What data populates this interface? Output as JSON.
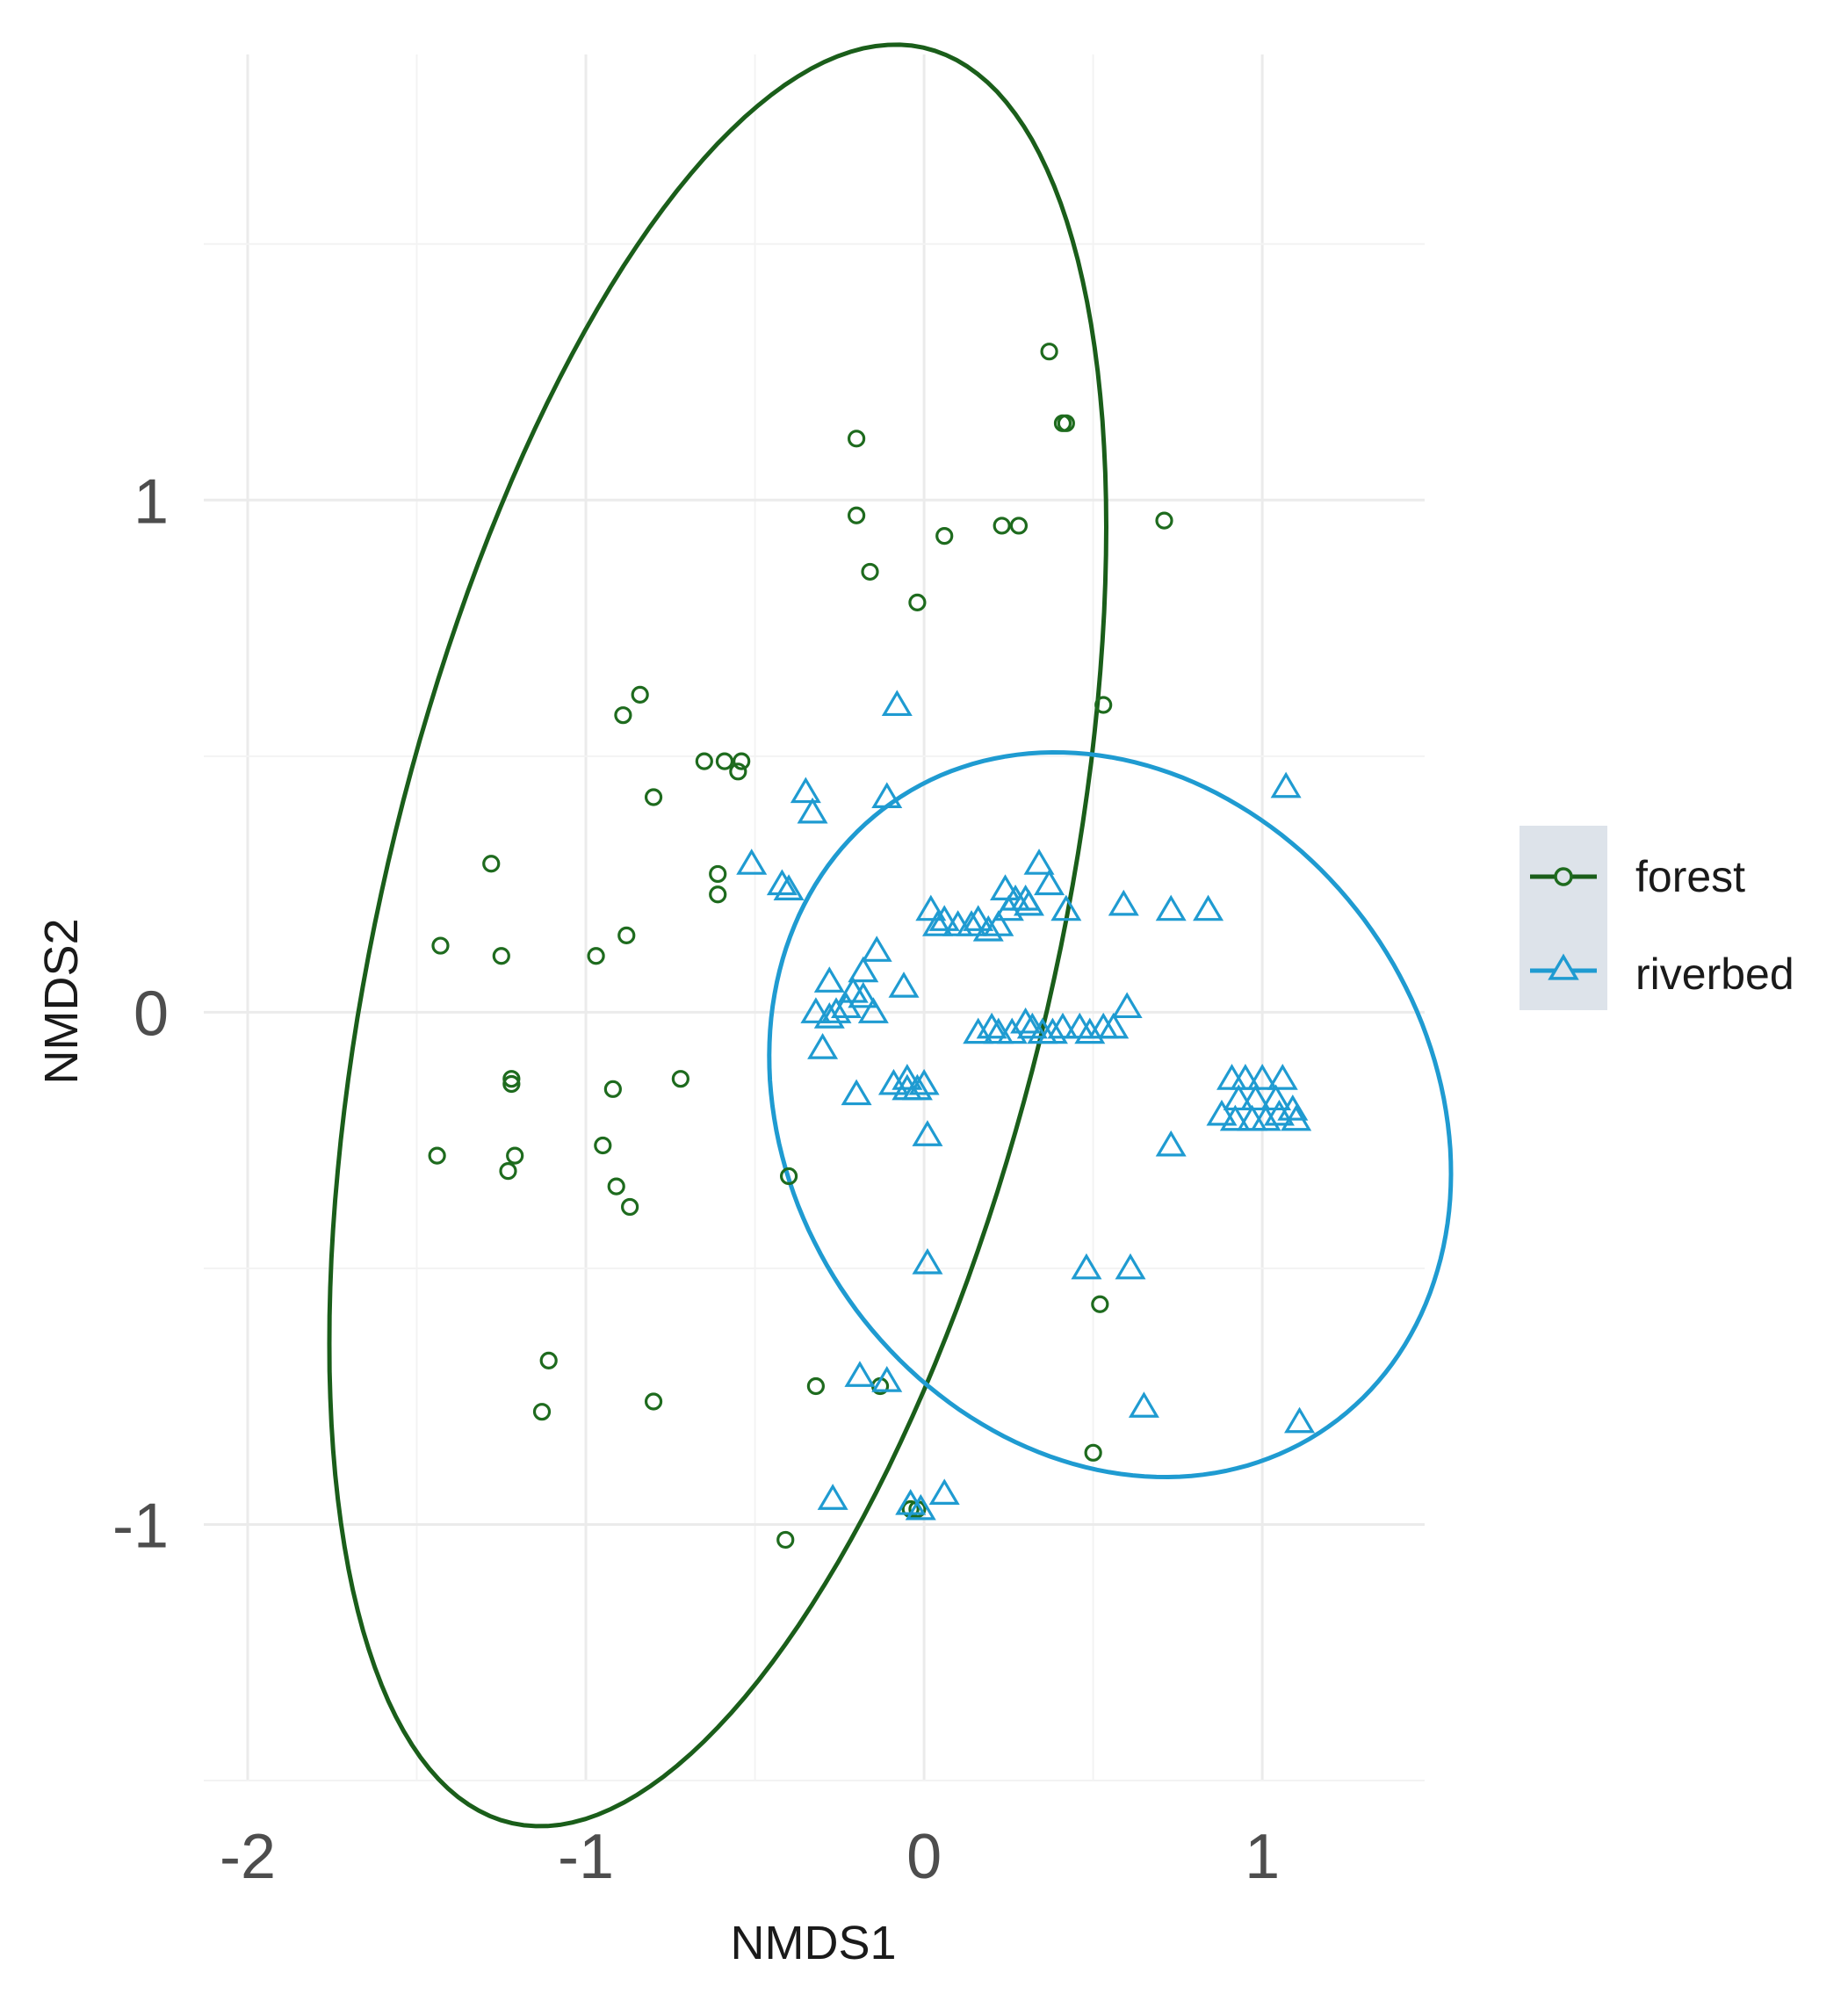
{
  "chart_data": {
    "type": "scatter",
    "xlabel": "NMDS1",
    "ylabel": "NMDS2",
    "xlim": [
      -2.0,
      1.48
    ],
    "ylim": [
      -1.5,
      1.87
    ],
    "xticks": [
      -2,
      -1,
      0,
      1
    ],
    "yticks": [
      -1,
      0,
      1
    ],
    "xtick_labels": [
      "-2",
      "-1",
      "0",
      "1"
    ],
    "ytick_labels": [
      "-1",
      "0",
      "1"
    ],
    "grid": true,
    "legend_position": "right",
    "series": [
      {
        "name": "forest",
        "marker": "circle",
        "color": "#1e6b1e",
        "ellipse_color": "#1a5e1a",
        "points": [
          [
            0.37,
            1.29
          ],
          [
            0.41,
            1.15
          ],
          [
            0.42,
            1.15
          ],
          [
            -0.2,
            1.12
          ],
          [
            -0.2,
            0.97
          ],
          [
            0.23,
            0.95
          ],
          [
            0.28,
            0.95
          ],
          [
            0.71,
            0.96
          ],
          [
            0.06,
            0.93
          ],
          [
            -0.16,
            0.86
          ],
          [
            -0.02,
            0.8
          ],
          [
            0.53,
            0.6
          ],
          [
            -0.84,
            0.62
          ],
          [
            -0.89,
            0.58
          ],
          [
            -0.65,
            0.49
          ],
          [
            -0.59,
            0.49
          ],
          [
            -0.54,
            0.49
          ],
          [
            -0.55,
            0.47
          ],
          [
            -0.8,
            0.42
          ],
          [
            -1.28,
            0.29
          ],
          [
            -0.61,
            0.27
          ],
          [
            -0.61,
            0.23
          ],
          [
            -1.43,
            0.13
          ],
          [
            -1.25,
            0.11
          ],
          [
            -0.97,
            0.11
          ],
          [
            -0.88,
            0.15
          ],
          [
            -1.22,
            -0.13
          ],
          [
            -1.22,
            -0.14
          ],
          [
            -0.92,
            -0.15
          ],
          [
            -0.72,
            -0.13
          ],
          [
            -0.95,
            -0.26
          ],
          [
            -1.21,
            -0.28
          ],
          [
            -1.44,
            -0.28
          ],
          [
            -1.23,
            -0.31
          ],
          [
            -0.91,
            -0.34
          ],
          [
            -0.87,
            -0.38
          ],
          [
            -0.4,
            -0.32
          ],
          [
            0.52,
            -0.57
          ],
          [
            -1.11,
            -0.68
          ],
          [
            -1.13,
            -0.78
          ],
          [
            -0.8,
            -0.76
          ],
          [
            -0.32,
            -0.73
          ],
          [
            -0.13,
            -0.73
          ],
          [
            0.5,
            -0.86
          ],
          [
            -0.04,
            -0.97
          ],
          [
            -0.02,
            -0.97
          ],
          [
            -0.41,
            -1.03
          ]
        ],
        "ellipse": {
          "center": [
            -0.61,
            0.15
          ],
          "a": 1.85,
          "b": 0.96,
          "angle_deg": 66.5
        }
      },
      {
        "name": "riverbed",
        "marker": "triangle",
        "color": "#1f9bd1",
        "ellipse_color": "#1f9bd1",
        "points": [
          [
            -0.08,
            0.6
          ],
          [
            -0.35,
            0.43
          ],
          [
            -0.33,
            0.39
          ],
          [
            -0.11,
            0.42
          ],
          [
            1.07,
            0.44
          ],
          [
            -0.51,
            0.29
          ],
          [
            -0.42,
            0.25
          ],
          [
            -0.4,
            0.24
          ],
          [
            0.34,
            0.29
          ],
          [
            0.37,
            0.25
          ],
          [
            0.24,
            0.24
          ],
          [
            0.27,
            0.22
          ],
          [
            0.31,
            0.21
          ],
          [
            0.25,
            0.2
          ],
          [
            0.3,
            0.22
          ],
          [
            0.42,
            0.2
          ],
          [
            0.59,
            0.21
          ],
          [
            0.73,
            0.2
          ],
          [
            0.84,
            0.2
          ],
          [
            0.02,
            0.2
          ],
          [
            0.06,
            0.18
          ],
          [
            0.04,
            0.17
          ],
          [
            0.1,
            0.17
          ],
          [
            0.14,
            0.17
          ],
          [
            0.19,
            0.16
          ],
          [
            0.16,
            0.18
          ],
          [
            0.22,
            0.17
          ],
          [
            -0.14,
            0.12
          ],
          [
            -0.18,
            0.08
          ],
          [
            -0.28,
            0.06
          ],
          [
            -0.21,
            0.04
          ],
          [
            -0.18,
            0.03
          ],
          [
            -0.06,
            0.05
          ],
          [
            -0.23,
            0.01
          ],
          [
            -0.32,
            0.0
          ],
          [
            -0.26,
            0.0
          ],
          [
            -0.15,
            0.0
          ],
          [
            -0.28,
            -0.01
          ],
          [
            0.6,
            0.01
          ],
          [
            -0.3,
            -0.07
          ],
          [
            0.16,
            -0.04
          ],
          [
            0.2,
            -0.03
          ],
          [
            0.22,
            -0.04
          ],
          [
            0.26,
            -0.04
          ],
          [
            0.32,
            -0.03
          ],
          [
            0.35,
            -0.04
          ],
          [
            0.38,
            -0.04
          ],
          [
            0.41,
            -0.03
          ],
          [
            0.46,
            -0.03
          ],
          [
            0.49,
            -0.04
          ],
          [
            0.53,
            -0.03
          ],
          [
            0.56,
            -0.03
          ],
          [
            0.3,
            -0.02
          ],
          [
            -0.09,
            -0.14
          ],
          [
            -0.05,
            -0.13
          ],
          [
            -0.05,
            -0.15
          ],
          [
            -0.02,
            -0.15
          ],
          [
            0.0,
            -0.14
          ],
          [
            -0.2,
            -0.16
          ],
          [
            0.91,
            -0.13
          ],
          [
            0.95,
            -0.13
          ],
          [
            1.0,
            -0.13
          ],
          [
            1.06,
            -0.13
          ],
          [
            0.93,
            -0.17
          ],
          [
            0.98,
            -0.17
          ],
          [
            1.04,
            -0.17
          ],
          [
            1.09,
            -0.19
          ],
          [
            0.88,
            -0.2
          ],
          [
            0.92,
            -0.21
          ],
          [
            0.97,
            -0.21
          ],
          [
            1.01,
            -0.21
          ],
          [
            1.05,
            -0.2
          ],
          [
            1.1,
            -0.21
          ],
          [
            0.01,
            -0.24
          ],
          [
            0.73,
            -0.26
          ],
          [
            0.01,
            -0.49
          ],
          [
            0.48,
            -0.5
          ],
          [
            0.61,
            -0.5
          ],
          [
            -0.19,
            -0.71
          ],
          [
            -0.11,
            -0.72
          ],
          [
            0.65,
            -0.77
          ],
          [
            1.11,
            -0.8
          ],
          [
            -0.27,
            -0.95
          ],
          [
            -0.04,
            -0.96
          ],
          [
            -0.01,
            -0.97
          ],
          [
            0.06,
            -0.94
          ]
        ],
        "ellipse": {
          "center": [
            0.55,
            -0.2
          ],
          "a": 1.02,
          "b": 0.69,
          "angle_deg": -12
        }
      }
    ]
  }
}
